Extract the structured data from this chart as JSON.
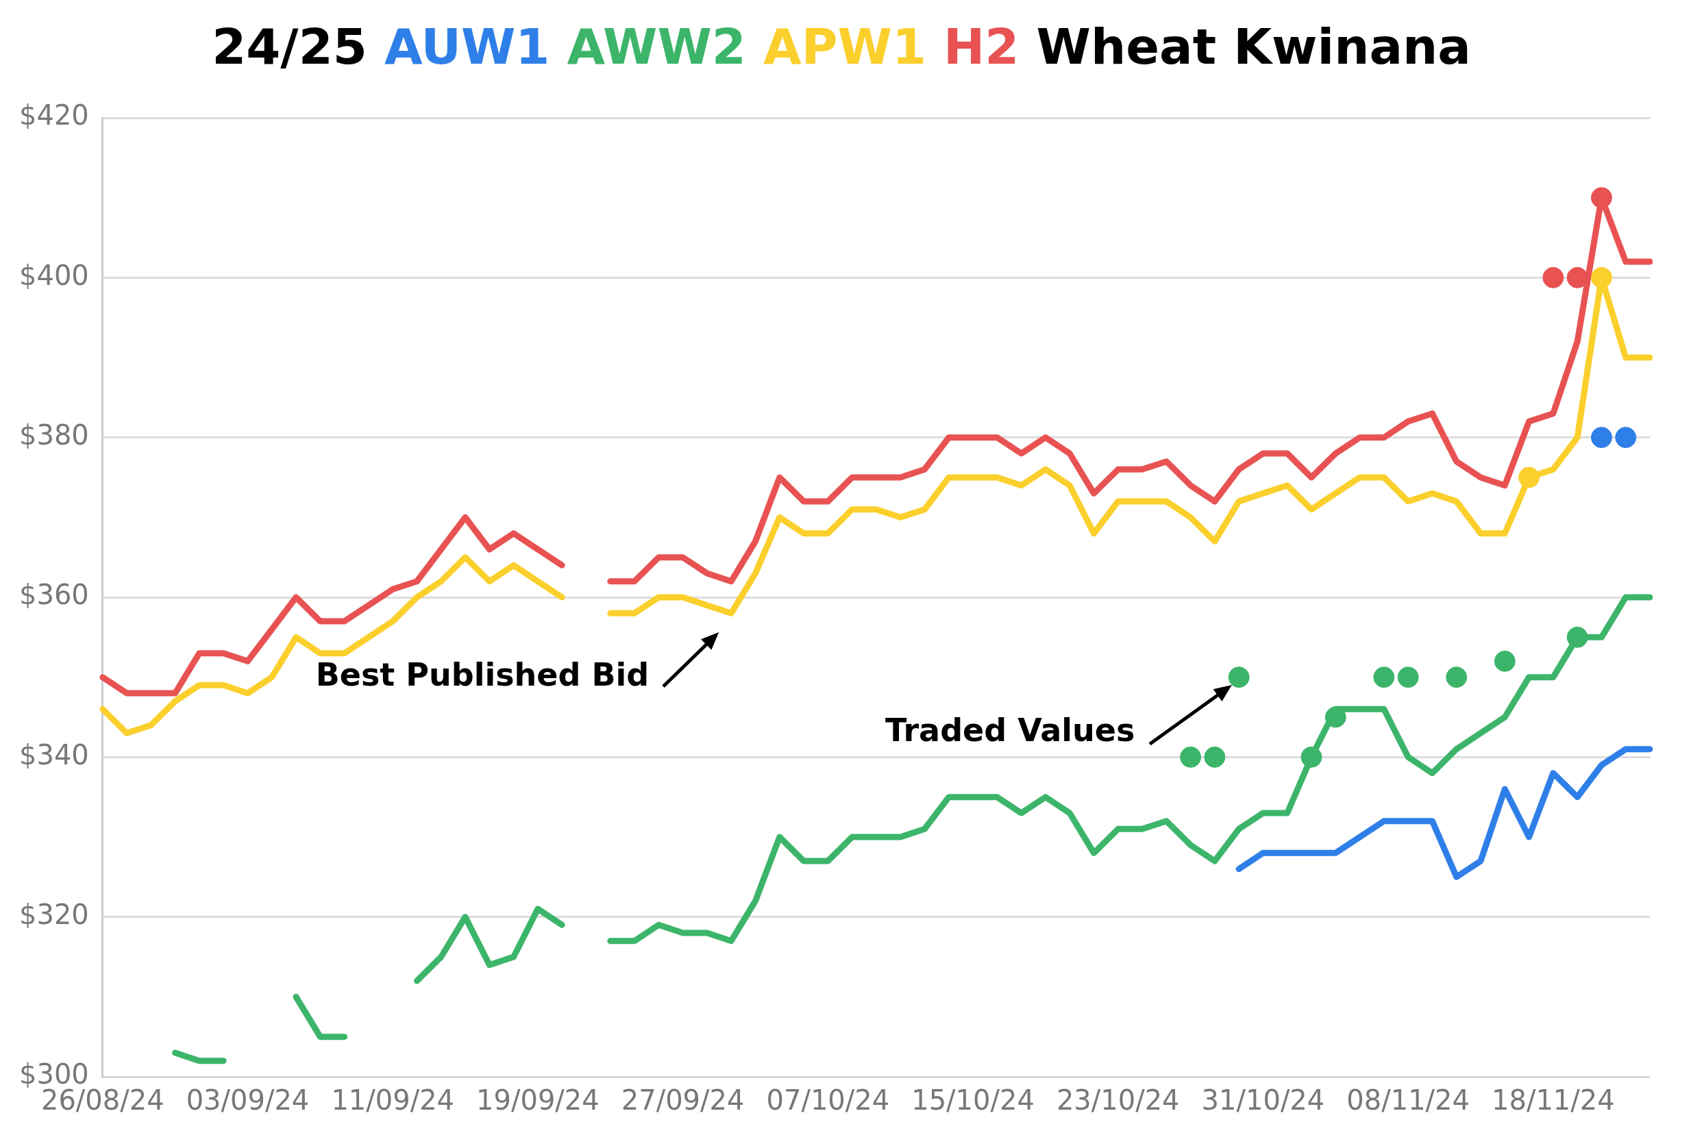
{
  "chart_data": {
    "type": "line",
    "title": "24/25 AUW1 AWW2 APW1 H2 Wheat Kwinana",
    "categories": [
      "26/08/24",
      null,
      null,
      null,
      null,
      null,
      "03/09/24",
      null,
      null,
      null,
      null,
      null,
      "11/09/24",
      null,
      null,
      null,
      null,
      null,
      "19/09/24",
      null,
      null,
      null,
      null,
      null,
      "27/09/24",
      null,
      null,
      null,
      null,
      null,
      "07/10/24",
      null,
      null,
      null,
      null,
      null,
      "15/10/24",
      null,
      null,
      null,
      null,
      null,
      "23/10/24",
      null,
      null,
      null,
      null,
      null,
      "31/10/24",
      null,
      null,
      null,
      null,
      null,
      "08/11/24",
      null,
      null,
      null,
      null,
      null,
      "18/11/24",
      null,
      null,
      null,
      null
    ],
    "series": [
      {
        "type": "line",
        "color": "#2f7fe8",
        "values": [
          null,
          null,
          null,
          null,
          null,
          null,
          null,
          null,
          null,
          null,
          null,
          null,
          null,
          null,
          null,
          null,
          null,
          null,
          null,
          null,
          null,
          null,
          null,
          null,
          null,
          null,
          null,
          null,
          null,
          null,
          null,
          null,
          null,
          null,
          null,
          null,
          null,
          null,
          null,
          null,
          null,
          null,
          null,
          null,
          null,
          null,
          null,
          326,
          328,
          328,
          328,
          328,
          330,
          332,
          332,
          332,
          325,
          327,
          336,
          330,
          338,
          335,
          339,
          341,
          341
        ]
      },
      {
        "type": "line",
        "color": "#3cb56a",
        "values": [
          null,
          null,
          null,
          303,
          302,
          302,
          null,
          null,
          310,
          305,
          305,
          null,
          null,
          312,
          315,
          320,
          314,
          315,
          321,
          319,
          null,
          317,
          317,
          319,
          318,
          318,
          317,
          322,
          330,
          327,
          327,
          330,
          330,
          330,
          331,
          335,
          335,
          335,
          333,
          335,
          333,
          328,
          331,
          331,
          332,
          329,
          327,
          331,
          333,
          333,
          340,
          346,
          346,
          346,
          340,
          338,
          341,
          343,
          345,
          350,
          350,
          355,
          355,
          360,
          360
        ]
      },
      {
        "type": "line",
        "color": "#fbcf2c",
        "values": [
          346,
          343,
          344,
          347,
          349,
          349,
          348,
          350,
          355,
          353,
          353,
          355,
          357,
          360,
          362,
          365,
          362,
          364,
          362,
          360,
          null,
          358,
          358,
          360,
          360,
          359,
          358,
          363,
          370,
          368,
          368,
          371,
          371,
          370,
          371,
          375,
          375,
          375,
          374,
          376,
          374,
          368,
          372,
          372,
          372,
          370,
          367,
          372,
          373,
          374,
          371,
          373,
          375,
          375,
          372,
          373,
          372,
          368,
          368,
          375,
          376,
          380,
          400,
          390,
          390
        ]
      },
      {
        "type": "line",
        "color": "#e85252",
        "values": [
          350,
          348,
          348,
          348,
          353,
          353,
          352,
          356,
          360,
          357,
          357,
          359,
          361,
          362,
          366,
          370,
          366,
          368,
          366,
          364,
          null,
          362,
          362,
          365,
          365,
          363,
          362,
          367,
          375,
          372,
          372,
          375,
          375,
          375,
          376,
          380,
          380,
          380,
          378,
          380,
          378,
          373,
          376,
          376,
          377,
          374,
          372,
          376,
          378,
          378,
          375,
          378,
          380,
          380,
          382,
          383,
          377,
          375,
          374,
          382,
          383,
          392,
          410,
          402,
          402
        ]
      },
      {
        "type": "scatter",
        "color": "#3cb56a",
        "values": [
          null,
          null,
          null,
          null,
          null,
          null,
          null,
          null,
          null,
          null,
          null,
          null,
          null,
          null,
          null,
          null,
          null,
          null,
          null,
          null,
          null,
          null,
          null,
          null,
          null,
          null,
          null,
          null,
          null,
          null,
          null,
          null,
          null,
          null,
          null,
          null,
          null,
          null,
          null,
          null,
          null,
          null,
          null,
          null,
          null,
          340,
          340,
          350,
          null,
          null,
          340,
          345,
          null,
          350,
          350,
          null,
          350,
          null,
          352,
          null,
          null,
          355,
          null,
          null,
          null
        ]
      },
      {
        "type": "scatter",
        "color": "#fbcf2c",
        "values": [
          null,
          null,
          null,
          null,
          null,
          null,
          null,
          null,
          null,
          null,
          null,
          null,
          null,
          null,
          null,
          null,
          null,
          null,
          null,
          null,
          null,
          null,
          null,
          null,
          null,
          null,
          null,
          null,
          null,
          null,
          null,
          null,
          null,
          null,
          null,
          null,
          null,
          null,
          null,
          null,
          null,
          null,
          null,
          null,
          null,
          null,
          null,
          null,
          null,
          null,
          null,
          null,
          null,
          null,
          null,
          null,
          null,
          null,
          null,
          375,
          null,
          null,
          400,
          null,
          null
        ]
      },
      {
        "type": "scatter",
        "color": "#e85252",
        "values": [
          null,
          null,
          null,
          null,
          null,
          null,
          null,
          null,
          null,
          null,
          null,
          null,
          null,
          null,
          null,
          null,
          null,
          null,
          null,
          null,
          null,
          null,
          null,
          null,
          null,
          null,
          null,
          null,
          null,
          null,
          null,
          null,
          null,
          null,
          null,
          null,
          null,
          null,
          null,
          null,
          null,
          null,
          null,
          null,
          null,
          null,
          null,
          null,
          null,
          null,
          null,
          null,
          null,
          null,
          null,
          null,
          null,
          null,
          null,
          null,
          400,
          400,
          410,
          null,
          null
        ]
      },
      {
        "type": "scatter",
        "color": "#2f7fe8",
        "values": [
          null,
          null,
          null,
          null,
          null,
          null,
          null,
          null,
          null,
          null,
          null,
          null,
          null,
          null,
          null,
          null,
          null,
          null,
          null,
          null,
          null,
          null,
          null,
          null,
          null,
          null,
          null,
          null,
          null,
          null,
          null,
          null,
          null,
          null,
          null,
          null,
          null,
          null,
          null,
          null,
          null,
          null,
          null,
          null,
          null,
          null,
          null,
          null,
          null,
          null,
          null,
          null,
          null,
          null,
          null,
          null,
          null,
          null,
          null,
          null,
          null,
          null,
          380,
          380,
          null
        ]
      }
    ],
    "ylim": [
      300,
      420
    ],
    "yticks": [
      {
        "value": 300,
        "label": "$300"
      },
      {
        "value": 320,
        "label": "$320"
      },
      {
        "value": 340,
        "label": "$340"
      },
      {
        "value": 360,
        "label": "$360"
      },
      {
        "value": 380,
        "label": "$380"
      },
      {
        "value": 400,
        "label": "$400"
      },
      {
        "value": 420,
        "label": "$420"
      }
    ],
    "grid": "y",
    "legend": false,
    "annotations": [
      "Best Published Bid",
      "Traded Values"
    ]
  }
}
